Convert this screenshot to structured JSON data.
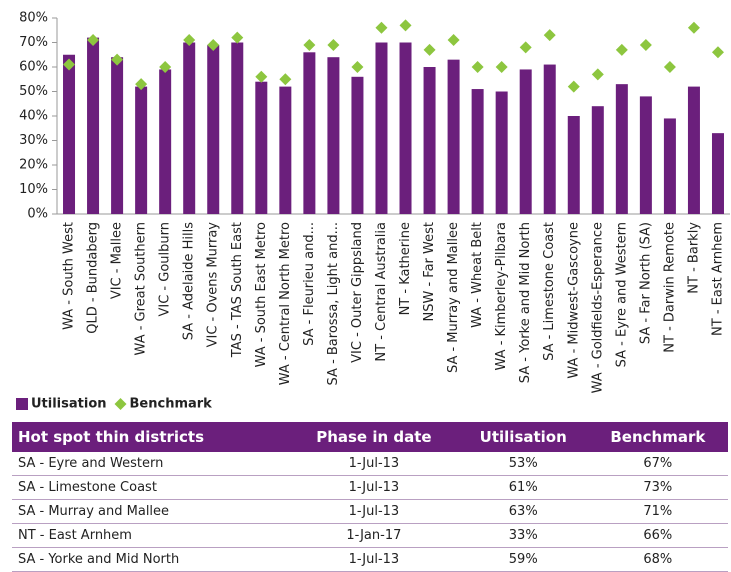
{
  "chart_data": {
    "type": "bar",
    "categories": [
      "WA - South West",
      "QLD - Bundaberg",
      "VIC - Mallee",
      "WA - Great Southern",
      "VIC - Goulburn",
      "SA - Adelaide Hills",
      "VIC - Ovens Murray",
      "TAS - TAS South East",
      "WA - South East Metro",
      "WA - Central North Metro",
      "SA - Fleurieu and...",
      "SA - Barossa, Light and...",
      "VIC - Outer Gippsland",
      "NT - Central Australia",
      "NT - Katherine",
      "NSW - Far West",
      "SA - Murray and Mallee",
      "WA - Wheat Belt",
      "WA - Kimberley-Pilbara",
      "SA - Yorke and Mid North",
      "SA - Limestone Coast",
      "WA - Midwest-Gascoyne",
      "WA - Goldfields-Esperance",
      "SA - Eyre and Western",
      "SA - Far North (SA)",
      "NT - Darwin Remote",
      "NT - Barkly",
      "NT - East Arnhem"
    ],
    "series": [
      {
        "name": "Utilisation",
        "color": "#6b1f7c",
        "kind": "bar",
        "values": [
          65,
          72,
          64,
          52,
          59,
          70,
          69,
          70,
          54,
          52,
          66,
          64,
          56,
          70,
          70,
          60,
          63,
          51,
          50,
          59,
          61,
          40,
          44,
          53,
          48,
          39,
          52,
          33
        ]
      },
      {
        "name": "Benchmark",
        "color": "#8dc63f",
        "kind": "marker",
        "values": [
          61,
          71,
          63,
          53,
          60,
          71,
          69,
          72,
          56,
          55,
          69,
          69,
          60,
          76,
          77,
          67,
          71,
          60,
          60,
          68,
          73,
          52,
          57,
          67,
          69,
          60,
          76,
          66
        ]
      }
    ],
    "ylim": [
      0,
      80
    ],
    "yticks": [
      {
        "value": 0,
        "label": "0%"
      },
      {
        "value": 10,
        "label": "10%"
      },
      {
        "value": 20,
        "label": "20%"
      },
      {
        "value": 30,
        "label": "30%"
      },
      {
        "value": 40,
        "label": "40%"
      },
      {
        "value": 50,
        "label": "50%"
      },
      {
        "value": 60,
        "label": "60%"
      },
      {
        "value": 70,
        "label": "70%"
      },
      {
        "value": 80,
        "label": "80%"
      }
    ],
    "legend": "bottom-left"
  },
  "table": {
    "header": [
      "Hot spot thin districts",
      "Phase in date",
      "Utilisation",
      "Benchmark"
    ],
    "rows": [
      [
        "SA - Eyre and Western",
        "1-Jul-13",
        "53%",
        "67%"
      ],
      [
        "SA - Limestone Coast",
        "1-Jul-13",
        "61%",
        "73%"
      ],
      [
        "SA - Murray and Mallee",
        "1-Jul-13",
        "63%",
        "71%"
      ],
      [
        "NT - East Arnhem",
        "1-Jan-17",
        "33%",
        "66%"
      ],
      [
        "SA - Yorke and Mid North",
        "1-Jul-13",
        "59%",
        "68%"
      ]
    ]
  }
}
